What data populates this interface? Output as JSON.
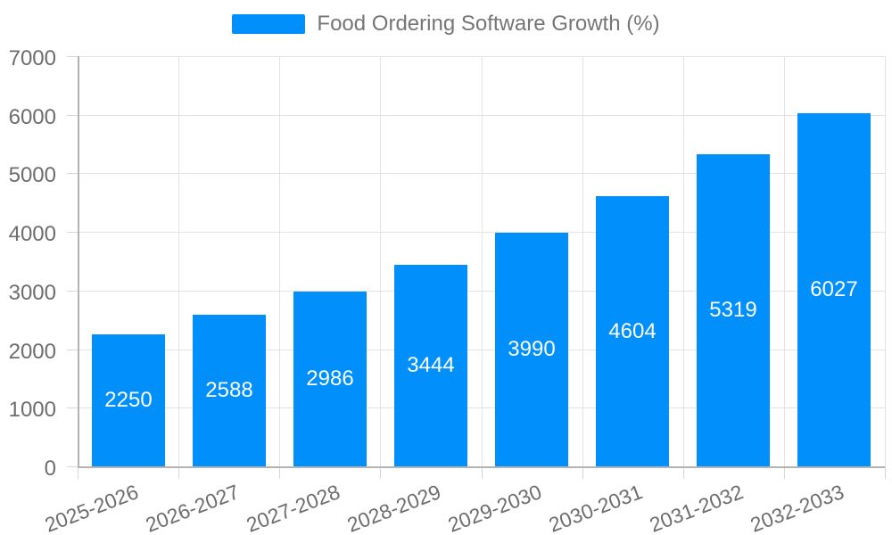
{
  "chart_data": {
    "type": "bar",
    "title": "Food Ordering Software Growth (%)",
    "legend_label": "Food Ordering Software Growth (%)",
    "legend_position": "top",
    "categories": [
      "2025-2026",
      "2026-2027",
      "2027-2028",
      "2028-2029",
      "2029-2030",
      "2030-2031",
      "2031-2032",
      "2032-2033"
    ],
    "values": [
      2250,
      2588,
      2986,
      3444,
      3990,
      4604,
      5319,
      6027
    ],
    "data_labels": [
      "2250",
      "2588",
      "2986",
      "3444",
      "3990",
      "4604",
      "5319",
      "6027"
    ],
    "xlabel": "",
    "ylabel": "",
    "ylim": [
      0,
      7000
    ],
    "ytick_step": 1000,
    "yticks": [
      0,
      1000,
      2000,
      3000,
      4000,
      5000,
      6000,
      7000
    ],
    "grid": true,
    "colors": {
      "bar": "#008FFB",
      "bar_value_label": "#ffffff",
      "legend_text": "#757575",
      "axis_label_text": "#6d6d6d",
      "gridline": "#e3e3e3",
      "axis_line": "#b3b3b3",
      "tick": "#d6d6d6",
      "background": "#ffffff"
    }
  }
}
